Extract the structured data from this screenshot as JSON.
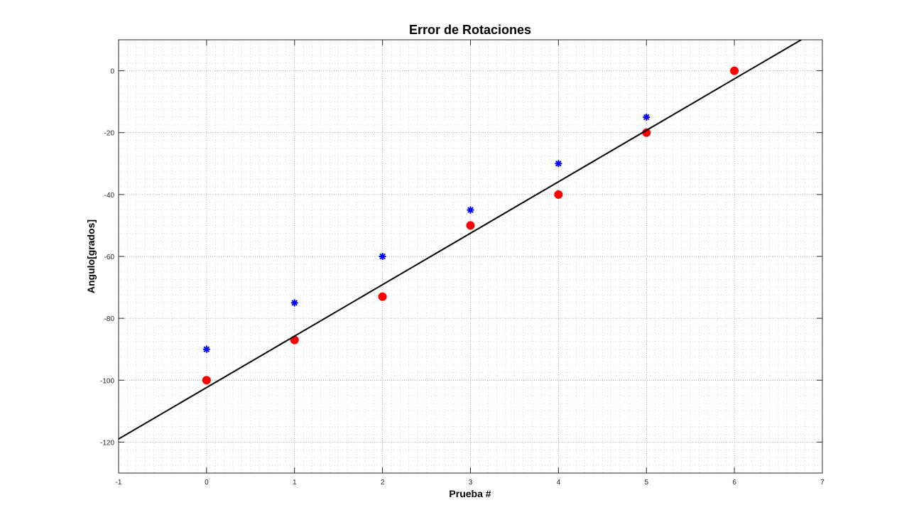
{
  "chart_data": {
    "type": "scatter",
    "title": "Error de Rotaciones",
    "xlabel": "Prueba #",
    "ylabel": "Angulo[grados]",
    "xlim": [
      -1,
      7
    ],
    "ylim": [
      -130,
      10
    ],
    "xticks": [
      -1,
      0,
      1,
      2,
      3,
      4,
      5,
      6,
      7
    ],
    "yticks": [
      -120,
      -100,
      -80,
      -60,
      -40,
      -20,
      0
    ],
    "grid": true,
    "minor_grid": true,
    "series": [
      {
        "marker": "asterisk",
        "color": "#0000ff",
        "x": [
          0,
          1,
          2,
          3,
          4,
          5
        ],
        "y": [
          -90,
          -75,
          -60,
          -45,
          -30,
          -15
        ]
      },
      {
        "marker": "circle",
        "color": "#ff0000",
        "x": [
          0,
          1,
          2,
          3,
          4,
          5,
          6
        ],
        "y": [
          -100,
          -87,
          -73,
          -50,
          -40,
          -20,
          0
        ]
      },
      {
        "marker": "line",
        "color": "#000000",
        "x": [
          -1,
          6.76
        ],
        "y": [
          -119,
          10
        ]
      }
    ]
  }
}
